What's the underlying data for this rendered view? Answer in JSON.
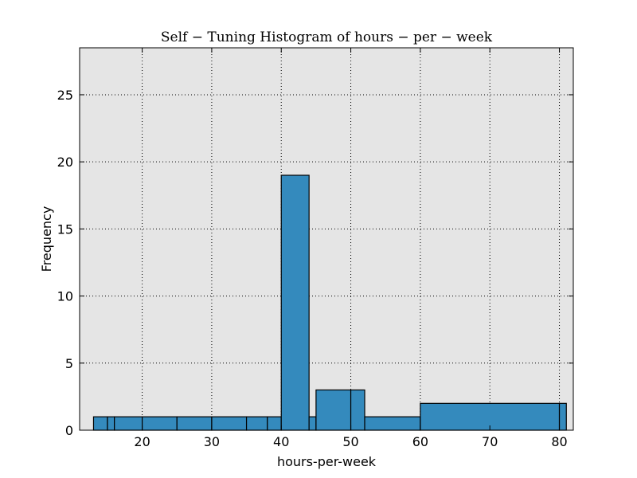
{
  "chart_data": {
    "type": "bar",
    "title": "Self − Tuning Histogram of hours − per − week",
    "xlabel": "hours-per-week",
    "ylabel": "Frequency",
    "xlim": [
      11,
      82
    ],
    "ylim": [
      0,
      28.5
    ],
    "xticks": [
      "20",
      "30",
      "40",
      "50",
      "60",
      "70",
      "80"
    ],
    "yticks": [
      "0",
      "5",
      "10",
      "15",
      "20",
      "25"
    ],
    "grid": true,
    "bins": [
      {
        "x0": 13,
        "x1": 15,
        "count": 1
      },
      {
        "x0": 15,
        "x1": 16,
        "count": 1
      },
      {
        "x0": 16,
        "x1": 20,
        "count": 1
      },
      {
        "x0": 20,
        "x1": 25,
        "count": 1
      },
      {
        "x0": 25,
        "x1": 30,
        "count": 1
      },
      {
        "x0": 30,
        "x1": 35,
        "count": 1
      },
      {
        "x0": 35,
        "x1": 38,
        "count": 1
      },
      {
        "x0": 38,
        "x1": 40,
        "count": 1
      },
      {
        "x0": 40,
        "x1": 44,
        "count": 19
      },
      {
        "x0": 44,
        "x1": 45,
        "count": 1
      },
      {
        "x0": 45,
        "x1": 50,
        "count": 3
      },
      {
        "x0": 50,
        "x1": 52,
        "count": 3
      },
      {
        "x0": 52,
        "x1": 60,
        "count": 1
      },
      {
        "x0": 60,
        "x1": 80,
        "count": 2
      },
      {
        "x0": 80,
        "x1": 81,
        "count": 2
      }
    ],
    "bar_color": "#348abd",
    "plot_bg": "#e5e5e5"
  }
}
